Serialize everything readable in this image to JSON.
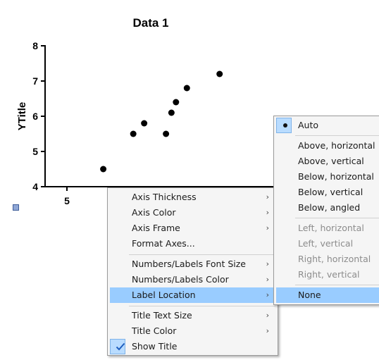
{
  "chart_data": {
    "type": "scatter",
    "title": "Data 1",
    "ylabel": "YTitle",
    "xlabel": "",
    "ylim": [
      4,
      8
    ],
    "yticks": [
      4,
      5,
      6,
      7,
      8
    ],
    "xticks": [
      5
    ],
    "points": [
      {
        "x": 9.0,
        "y": 4.5
      },
      {
        "x": 12.3,
        "y": 5.5
      },
      {
        "x": 13.5,
        "y": 5.8
      },
      {
        "x": 15.9,
        "y": 5.5
      },
      {
        "x": 16.5,
        "y": 6.1
      },
      {
        "x": 17.0,
        "y": 6.4
      },
      {
        "x": 18.2,
        "y": 6.8
      },
      {
        "x": 21.8,
        "y": 7.2
      }
    ],
    "marker_color": "#000000",
    "grid": false
  },
  "context_menu": {
    "items": [
      {
        "label": "Axis Thickness",
        "submenu": true
      },
      {
        "label": "Axis Color",
        "submenu": true
      },
      {
        "label": "Axis Frame",
        "submenu": true
      },
      {
        "label": "Format Axes...",
        "submenu": false
      },
      {
        "label": "Numbers/Labels Font Size",
        "submenu": true
      },
      {
        "label": "Numbers/Labels Color",
        "submenu": true
      },
      {
        "label": "Label Location",
        "submenu": true,
        "highlighted": true
      },
      {
        "label": "Title Text Size",
        "submenu": true
      },
      {
        "label": "Title Color",
        "submenu": true
      },
      {
        "label": "Show Title",
        "submenu": false,
        "checked": true
      }
    ],
    "arrow_glyph": "›",
    "highlight_color": "#99ccff"
  },
  "label_location_submenu": {
    "items": [
      {
        "label": "Auto",
        "selected": true
      },
      {
        "label": "Above, horizontal"
      },
      {
        "label": "Above, vertical"
      },
      {
        "label": "Below, horizontal"
      },
      {
        "label": "Below, vertical"
      },
      {
        "label": "Below, angled"
      },
      {
        "label": "Left, horizontal",
        "disabled": true
      },
      {
        "label": "Left, vertical",
        "disabled": true
      },
      {
        "label": "Right, horizontal",
        "disabled": true
      },
      {
        "label": "Right, vertical",
        "disabled": true
      },
      {
        "label": "None",
        "highlighted": true
      }
    ]
  }
}
